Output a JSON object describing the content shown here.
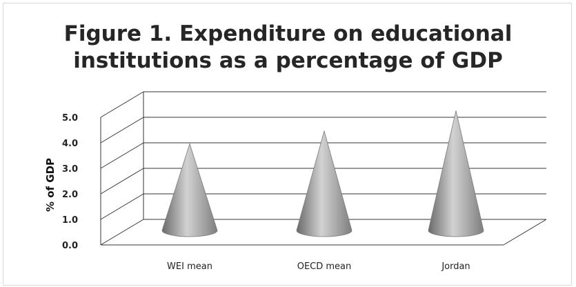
{
  "chart_data": {
    "type": "bar",
    "shape": "3d-cone",
    "title_line1": "Figure 1. Expenditure on educational",
    "title_line2": "institutions as a percentage of GDP",
    "ylabel": "% of GDP",
    "xlabel": "",
    "categories": [
      "WEI mean",
      "OECD mean",
      "Jordan"
    ],
    "values": [
      3.5,
      4.0,
      4.8
    ],
    "ylim": [
      0,
      5
    ],
    "yticks": [
      "0.0",
      "1.0",
      "2.0",
      "3.0",
      "4.0",
      "5.0"
    ],
    "grid": true,
    "legend": "none",
    "colors": {
      "cone": "#8f8f8f",
      "grid": "#333333"
    }
  }
}
